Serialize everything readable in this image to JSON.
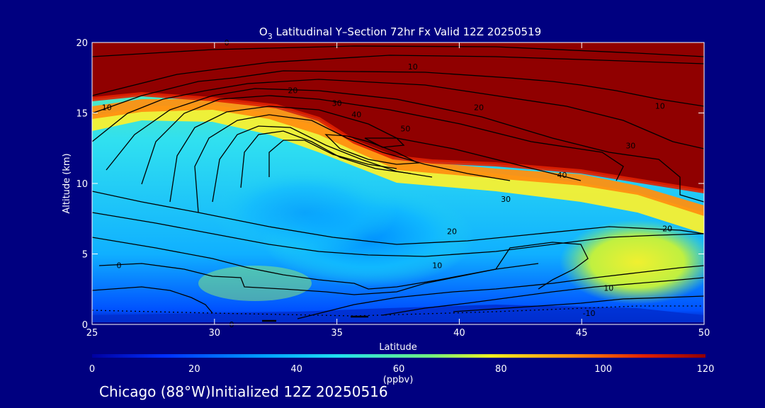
{
  "chart_data": {
    "type": "heatmap",
    "title_prefix": "O",
    "title_sub": "3",
    "title_rest": " Latitudinal Y–Section 72hr  Fx Valid 12Z 20250519",
    "xlabel": "Latitude",
    "ylabel": "Altitude (km)",
    "xlim": [
      25,
      50
    ],
    "ylim": [
      0,
      20
    ],
    "xticks": [
      25,
      30,
      35,
      40,
      45,
      50
    ],
    "yticks": [
      0,
      5,
      10,
      15,
      20
    ],
    "colorbar": {
      "label": "(ppbv)",
      "range": [
        0,
        120
      ],
      "ticks": [
        0,
        20,
        40,
        60,
        80,
        100,
        120
      ],
      "colors": [
        "#0000a0",
        "#0030ff",
        "#00a0ff",
        "#20e0f0",
        "#70f080",
        "#f0f020",
        "#ff9010",
        "#e02000",
        "#900000"
      ]
    },
    "contour_labels": [
      {
        "text": "0",
        "x": 30.5,
        "y": 20.0
      },
      {
        "text": "10",
        "x": 38.1,
        "y": 18.3
      },
      {
        "text": "20",
        "x": 33.2,
        "y": 16.6
      },
      {
        "text": "10",
        "x": 25.6,
        "y": 15.4
      },
      {
        "text": "20",
        "x": 40.8,
        "y": 15.4
      },
      {
        "text": "10",
        "x": 48.2,
        "y": 15.5
      },
      {
        "text": "30",
        "x": 35.0,
        "y": 15.7
      },
      {
        "text": "40",
        "x": 35.8,
        "y": 14.9
      },
      {
        "text": "50",
        "x": 37.8,
        "y": 13.9
      },
      {
        "text": "30",
        "x": 47.0,
        "y": 12.7
      },
      {
        "text": "40",
        "x": 44.2,
        "y": 10.6
      },
      {
        "text": "30",
        "x": 41.9,
        "y": 8.9
      },
      {
        "text": "20",
        "x": 39.7,
        "y": 6.6
      },
      {
        "text": "20",
        "x": 48.5,
        "y": 6.8
      },
      {
        "text": "10",
        "x": 39.1,
        "y": 4.2
      },
      {
        "text": "0",
        "x": 26.1,
        "y": 4.2
      },
      {
        "text": "10",
        "x": 46.1,
        "y": 2.6
      },
      {
        "text": "-10",
        "x": 45.3,
        "y": 0.8
      },
      {
        "text": "0",
        "x": 30.7,
        "y": 0.0
      }
    ]
  },
  "footer": "Chicago (88°W)Initialized 12Z 20250516"
}
